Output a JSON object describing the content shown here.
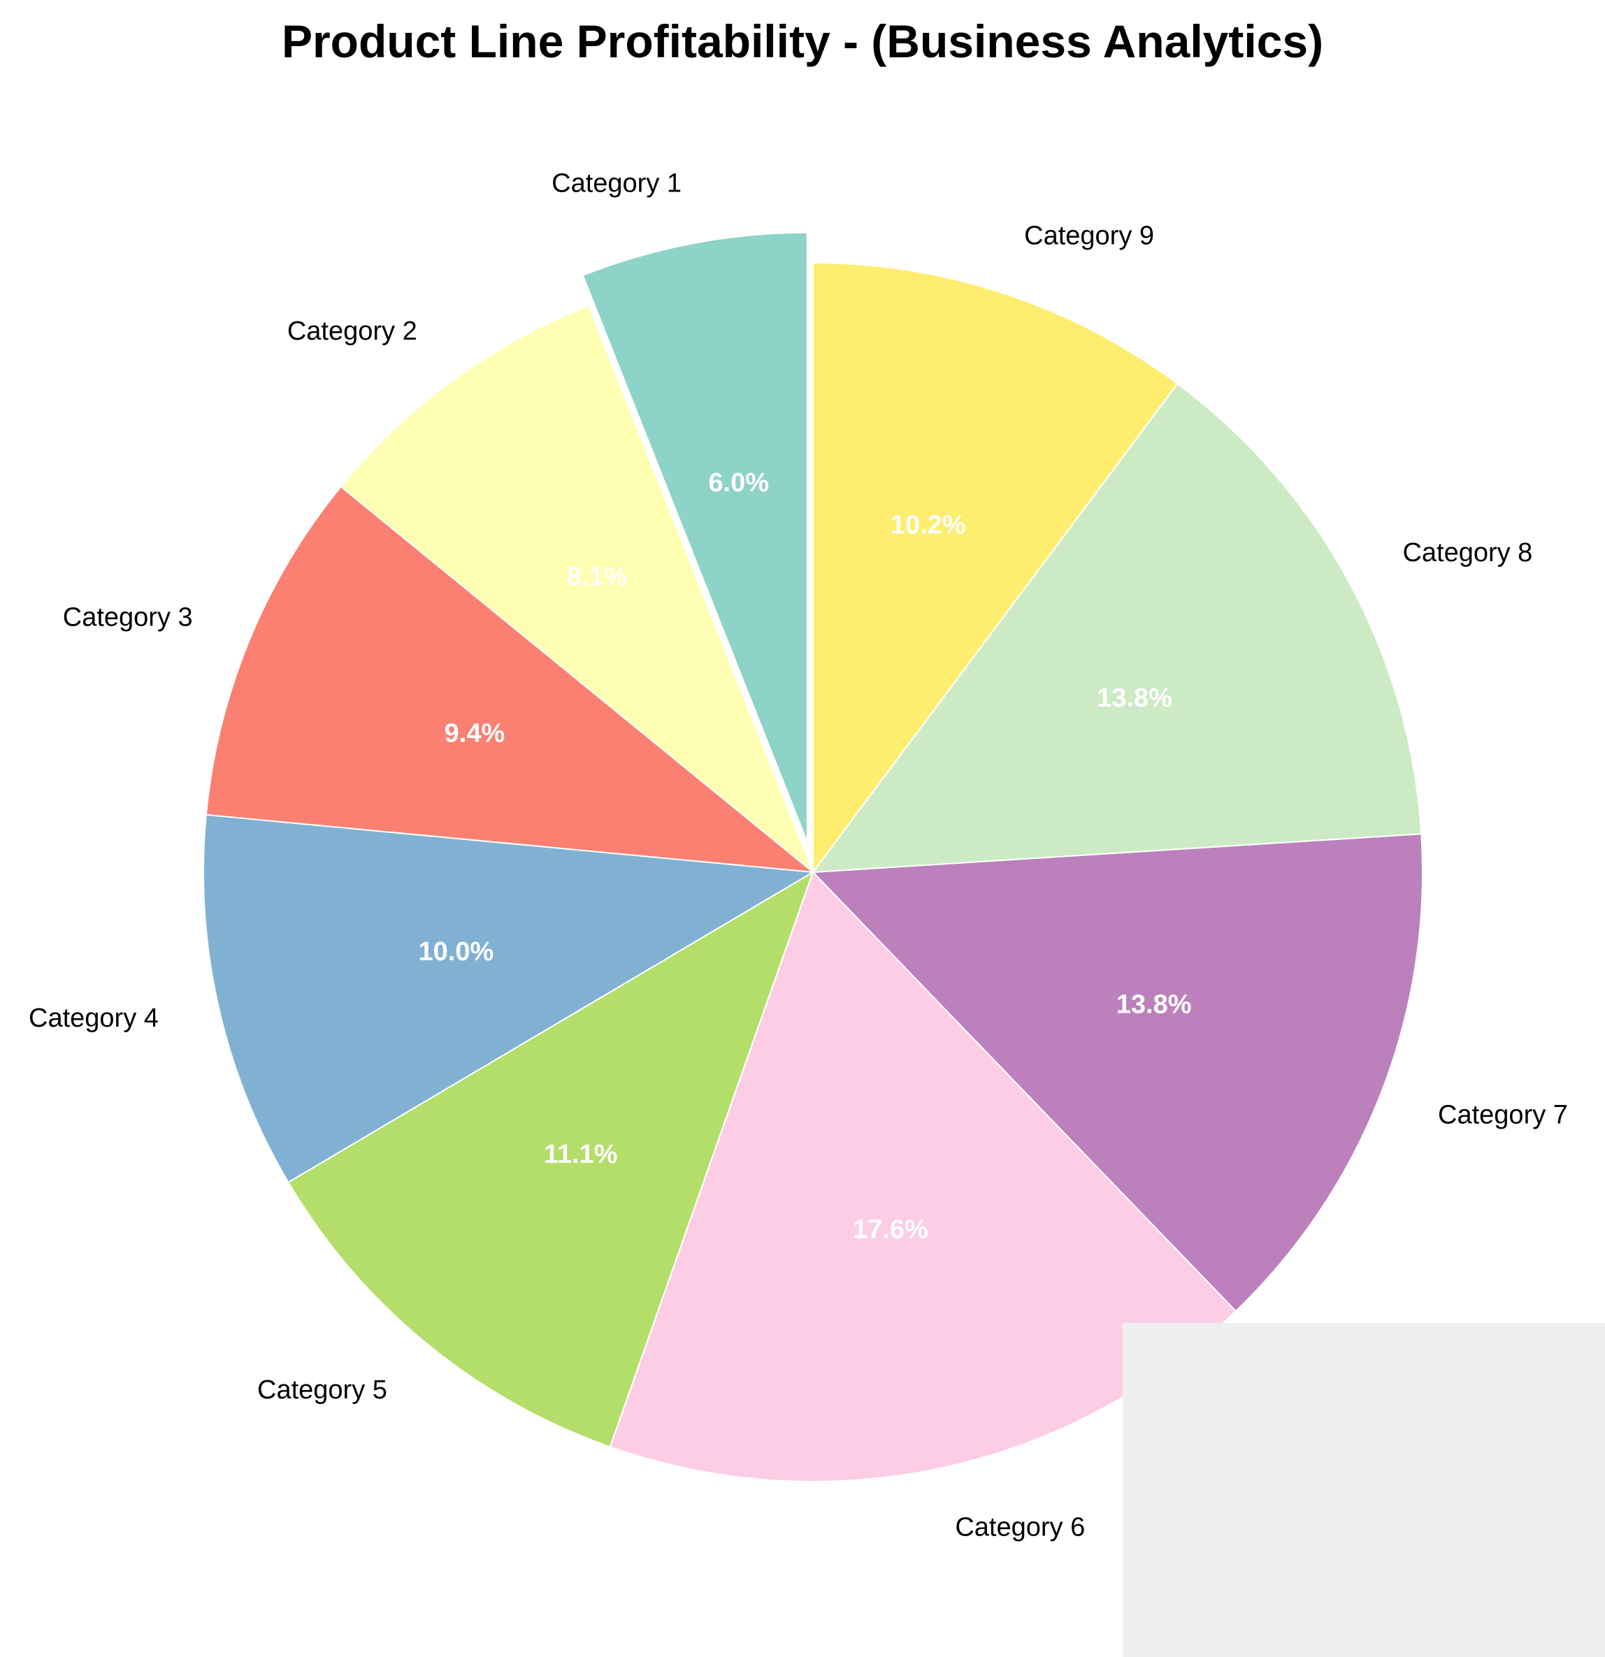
{
  "chart_data": {
    "type": "pie",
    "title": "Product Line Profitability - (Business Analytics)",
    "categories": [
      "Category 1",
      "Category 2",
      "Category 3",
      "Category 4",
      "Category 5",
      "Category 6",
      "Category 7",
      "Category 8",
      "Category 9"
    ],
    "values": [
      6.0,
      8.1,
      9.4,
      10.0,
      11.1,
      17.6,
      13.8,
      13.8,
      10.2
    ],
    "value_labels": [
      "6.0%",
      "8.1%",
      "9.4%",
      "10.0%",
      "11.1%",
      "17.6%",
      "13.8%",
      "13.8%",
      "10.2%"
    ],
    "colors": [
      "#8dd3c7",
      "#ffffb3",
      "#fb8072",
      "#80b1d3",
      "#b3de69",
      "#fccde5",
      "#bc80bd",
      "#ccebc5",
      "#ffed6f"
    ],
    "exploded": [
      "Category 1"
    ],
    "start": "top",
    "direction": "counterclockwise",
    "legend": "none"
  }
}
